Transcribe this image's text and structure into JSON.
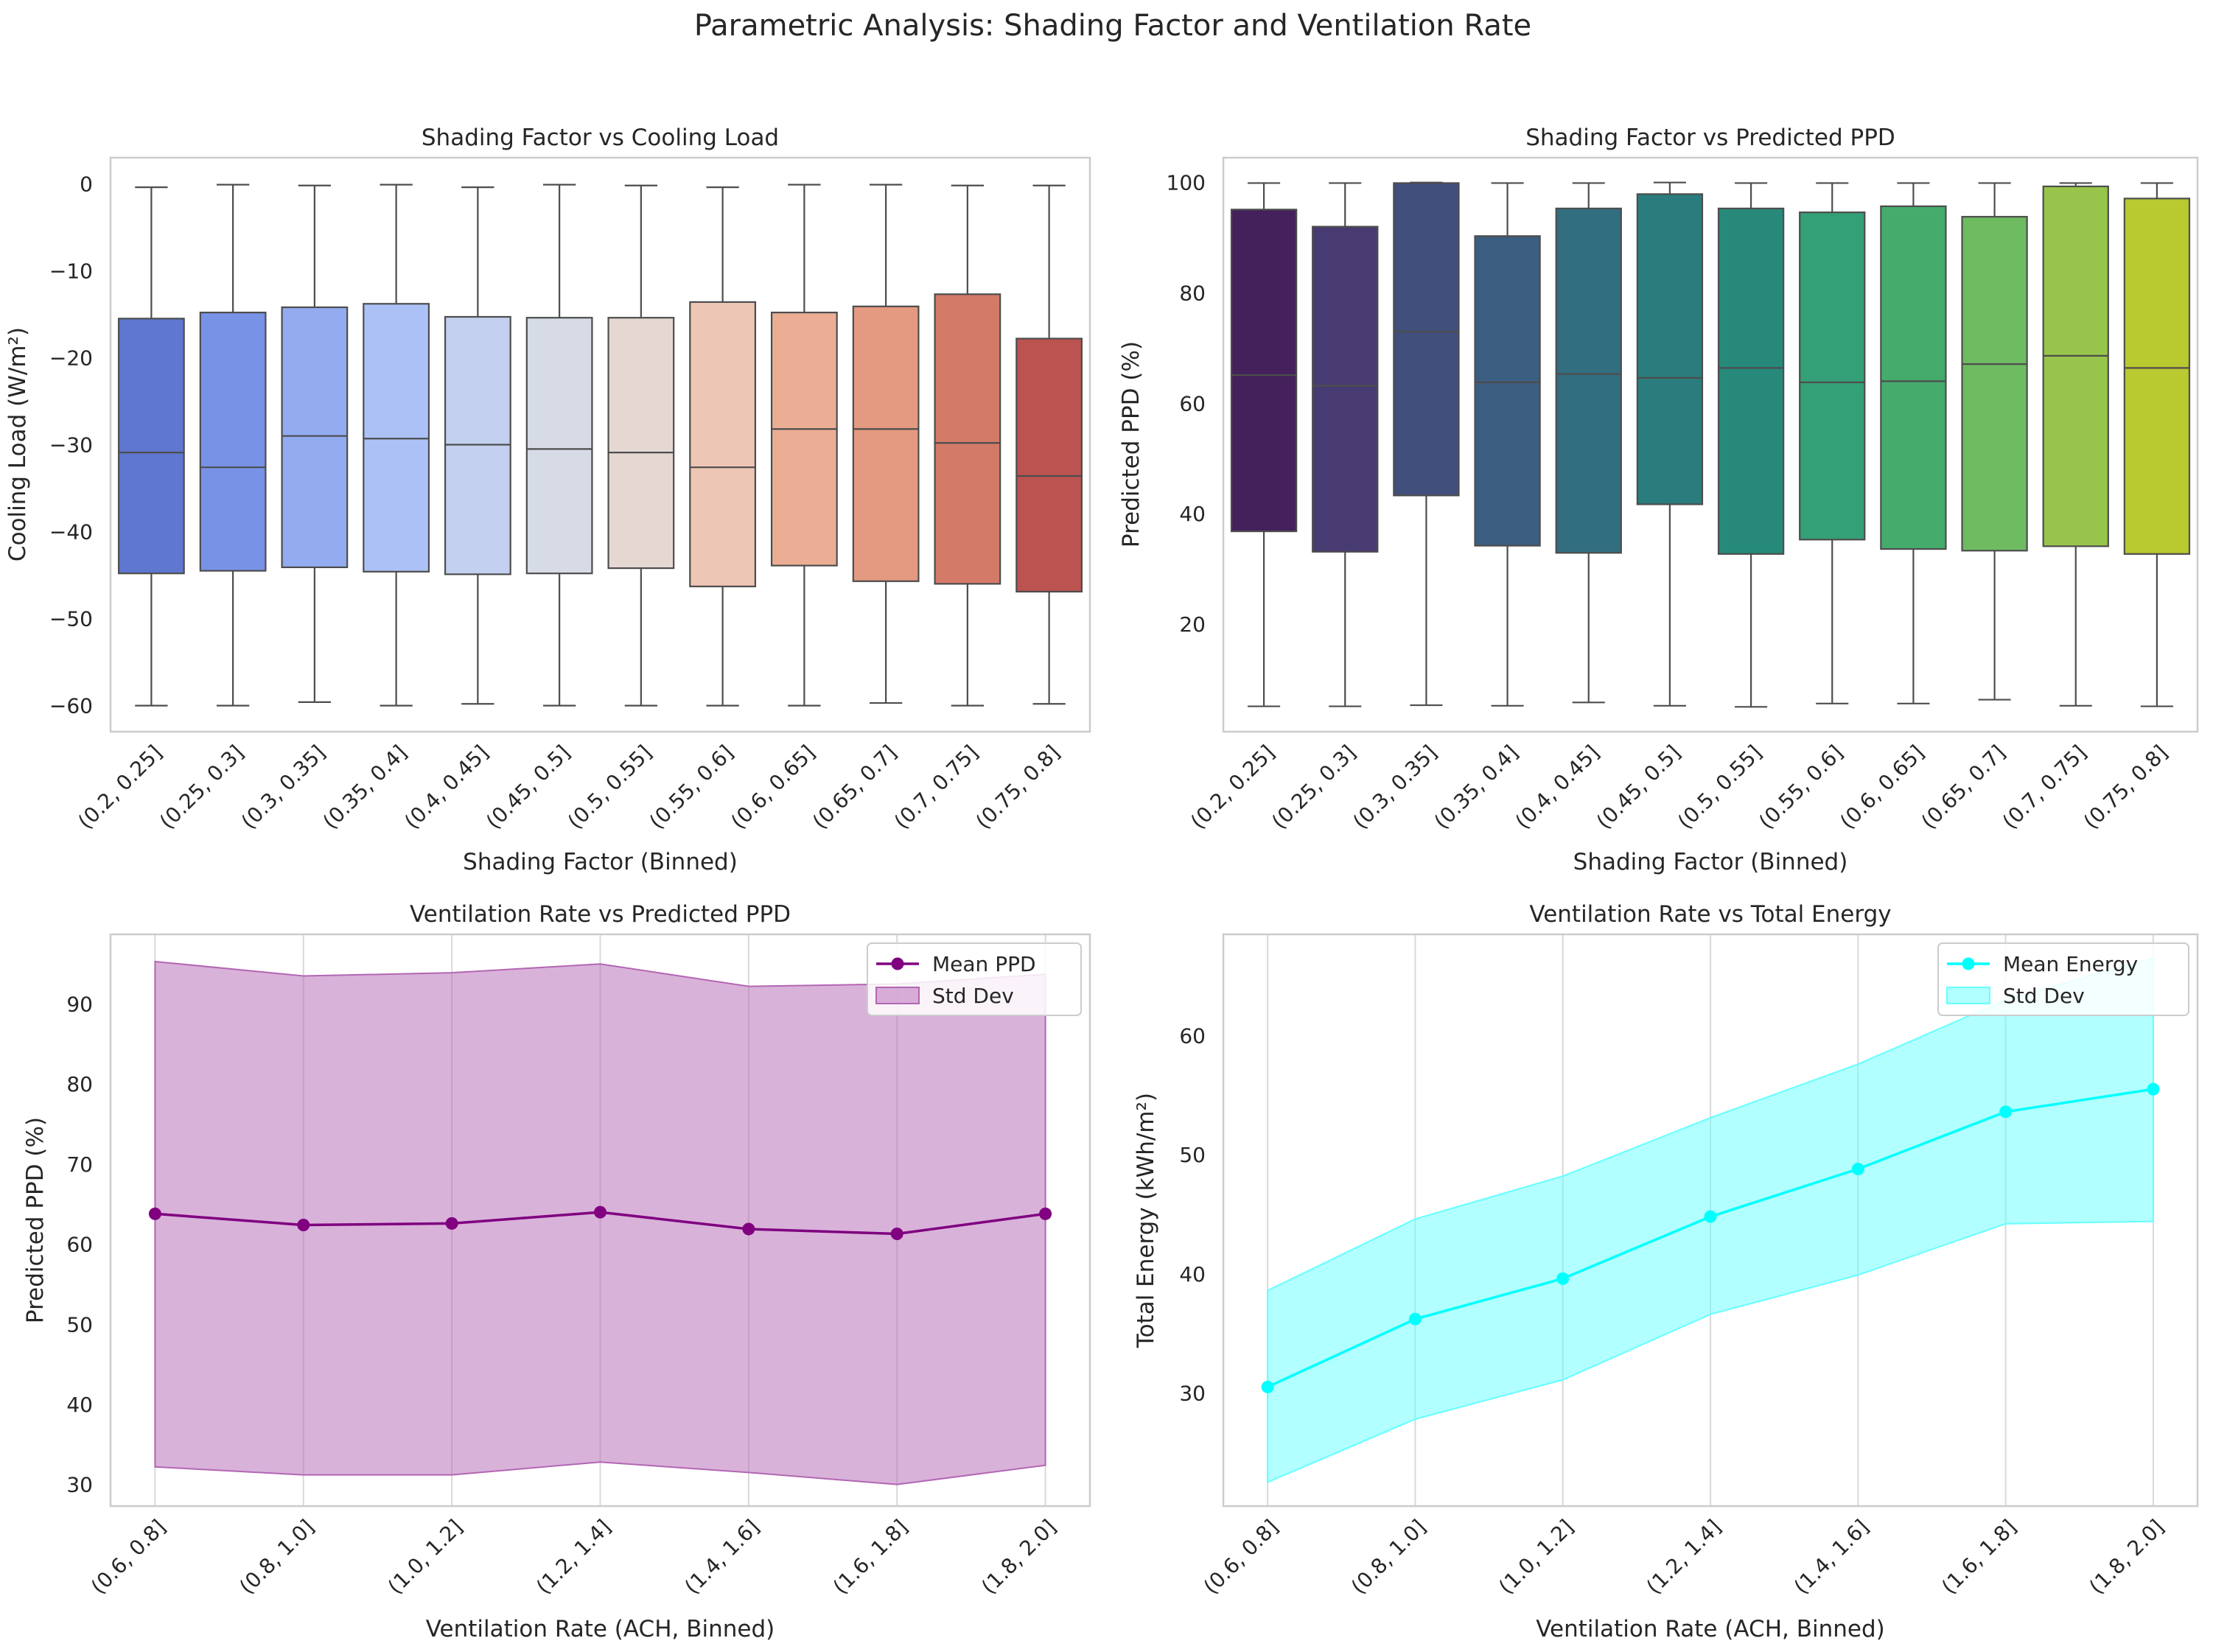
{
  "figure": {
    "suptitle": "Parametric Analysis: Shading Factor and Ventilation Rate"
  },
  "chart_data": [
    {
      "type": "box",
      "title": "Shading Factor vs Cooling Load",
      "xlabel": "Shading Factor (Binned)",
      "ylabel": "Cooling Load (W/m²)",
      "ylim": [
        -63,
        3
      ],
      "yticks": [
        0,
        -10,
        -20,
        -30,
        -40,
        -50,
        -60
      ],
      "categories": [
        "(0.2, 0.25]",
        "(0.25, 0.3]",
        "(0.3, 0.35]",
        "(0.35, 0.4]",
        "(0.4, 0.45]",
        "(0.45, 0.5]",
        "(0.5, 0.55]",
        "(0.55, 0.6]",
        "(0.6, 0.65]",
        "(0.65, 0.7]",
        "(0.7, 0.75]",
        "(0.75, 0.8]"
      ],
      "boxes": [
        {
          "min": -60.0,
          "q1": -44.8,
          "median": -30.9,
          "q3": -15.5,
          "max": -0.4
        },
        {
          "min": -60.0,
          "q1": -44.5,
          "median": -32.6,
          "q3": -14.8,
          "max": -0.1
        },
        {
          "min": -59.6,
          "q1": -44.1,
          "median": -29.0,
          "q3": -14.2,
          "max": -0.2
        },
        {
          "min": -60.0,
          "q1": -44.6,
          "median": -29.3,
          "q3": -13.8,
          "max": -0.1
        },
        {
          "min": -59.8,
          "q1": -44.9,
          "median": -30.0,
          "q3": -15.3,
          "max": -0.4
        },
        {
          "min": -60.0,
          "q1": -44.8,
          "median": -30.5,
          "q3": -15.4,
          "max": -0.1
        },
        {
          "min": -60.0,
          "q1": -44.2,
          "median": -30.9,
          "q3": -15.4,
          "max": -0.2
        },
        {
          "min": -60.0,
          "q1": -46.3,
          "median": -32.6,
          "q3": -13.6,
          "max": -0.4
        },
        {
          "min": -60.0,
          "q1": -43.9,
          "median": -28.2,
          "q3": -14.8,
          "max": -0.1
        },
        {
          "min": -59.7,
          "q1": -45.7,
          "median": -28.2,
          "q3": -14.1,
          "max": -0.1
        },
        {
          "min": -60.0,
          "q1": -46.0,
          "median": -29.8,
          "q3": -12.7,
          "max": -0.2
        },
        {
          "min": -59.8,
          "q1": -46.9,
          "median": -33.6,
          "q3": -17.8,
          "max": -0.2
        }
      ],
      "colors": [
        "#5f77d0",
        "#7892e6",
        "#93acf0",
        "#acc2f7",
        "#c3d0ef",
        "#d6dbe5",
        "#e5d8d3",
        "#eec6b5",
        "#ebae94",
        "#e39a80",
        "#d47a69",
        "#bb5350"
      ]
    },
    {
      "type": "box",
      "title": "Shading Factor vs Predicted PPD",
      "xlabel": "Shading Factor (Binned)",
      "ylabel": "Predicted PPD (%)",
      "ylim": [
        0.5,
        104.5
      ],
      "yticks": [
        20,
        40,
        60,
        80,
        100
      ],
      "categories": [
        "(0.2, 0.25]",
        "(0.25, 0.3]",
        "(0.3, 0.35]",
        "(0.35, 0.4]",
        "(0.4, 0.45]",
        "(0.45, 0.5]",
        "(0.5, 0.55]",
        "(0.55, 0.6]",
        "(0.6, 0.65]",
        "(0.65, 0.7]",
        "(0.7, 0.75]",
        "(0.75, 0.8]"
      ],
      "boxes": [
        {
          "min": 5.1,
          "q1": 36.8,
          "median": 65.1,
          "q3": 95.1,
          "max": 99.9
        },
        {
          "min": 5.1,
          "q1": 33.1,
          "median": 63.2,
          "q3": 92.0,
          "max": 99.9
        },
        {
          "min": 5.3,
          "q1": 43.3,
          "median": 73.0,
          "q3": 99.9,
          "max": 100.0
        },
        {
          "min": 5.2,
          "q1": 34.2,
          "median": 63.8,
          "q3": 90.3,
          "max": 99.9
        },
        {
          "min": 5.8,
          "q1": 32.9,
          "median": 65.3,
          "q3": 95.3,
          "max": 99.9
        },
        {
          "min": 5.2,
          "q1": 41.7,
          "median": 64.6,
          "q3": 97.9,
          "max": 100.0
        },
        {
          "min": 5.0,
          "q1": 32.7,
          "median": 66.4,
          "q3": 95.3,
          "max": 99.9
        },
        {
          "min": 5.6,
          "q1": 35.3,
          "median": 63.8,
          "q3": 94.6,
          "max": 99.9
        },
        {
          "min": 5.6,
          "q1": 33.6,
          "median": 64.0,
          "q3": 95.7,
          "max": 99.9
        },
        {
          "min": 6.3,
          "q1": 33.3,
          "median": 67.1,
          "q3": 93.8,
          "max": 99.9
        },
        {
          "min": 5.2,
          "q1": 34.1,
          "median": 68.6,
          "q3": 99.3,
          "max": 99.9
        },
        {
          "min": 5.1,
          "q1": 32.7,
          "median": 66.4,
          "q3": 97.1,
          "max": 99.9
        }
      ],
      "colors": [
        "#44215a",
        "#483b72",
        "#414f7d",
        "#3b5e80",
        "#316e80",
        "#2b7c7d",
        "#26897a",
        "#33a077",
        "#45ab6d",
        "#6ebb62",
        "#97c54b",
        "#b9c930"
      ]
    },
    {
      "type": "line",
      "title": "Ventilation Rate vs Predicted PPD",
      "xlabel": "Ventilation Rate (ACH, Binned)",
      "ylabel": "Predicted PPD (%)",
      "ylim": [
        27.3,
        98.7
      ],
      "yticks": [
        30,
        40,
        50,
        60,
        70,
        80,
        90
      ],
      "categories": [
        "(0.6, 0.8]",
        "(0.8, 1.0]",
        "(1.0, 1.2]",
        "(1.2, 1.4]",
        "(1.4, 1.6]",
        "(1.6, 1.8]",
        "(1.8, 2.0]"
      ],
      "series": [
        {
          "name": "Mean PPD",
          "values": [
            63.8,
            62.4,
            62.6,
            64.0,
            61.9,
            61.3,
            63.8
          ],
          "color": "#800080"
        }
      ],
      "band": {
        "name": "Std Dev",
        "upper": [
          95.3,
          93.5,
          93.9,
          95.0,
          92.2,
          92.5,
          93.7
        ],
        "lower": [
          32.2,
          31.2,
          31.2,
          32.8,
          31.5,
          30.0,
          32.4
        ],
        "color": "#b366b3"
      },
      "legend": "top-right"
    },
    {
      "type": "line",
      "title": "Ventilation Rate vs Total Energy",
      "xlabel": "Ventilation Rate (ACH, Binned)",
      "ylabel": "Total Energy (kWh/m²)",
      "ylim": [
        20.5,
        68.5
      ],
      "yticks": [
        30,
        40,
        50,
        60
      ],
      "categories": [
        "(0.6, 0.8]",
        "(0.8, 1.0]",
        "(1.0, 1.2]",
        "(1.2, 1.4]",
        "(1.4, 1.6]",
        "(1.6, 1.8]",
        "(1.8, 2.0]"
      ],
      "series": [
        {
          "name": "Mean Energy",
          "values": [
            30.5,
            36.2,
            39.6,
            44.8,
            48.8,
            53.6,
            55.5
          ],
          "color": "#00ffff"
        }
      ],
      "band": {
        "name": "Std Dev",
        "upper": [
          38.6,
          44.6,
          48.2,
          53.1,
          57.6,
          63.0,
          66.5
        ],
        "lower": [
          22.5,
          27.8,
          31.1,
          36.6,
          39.9,
          44.2,
          44.4
        ],
        "color": "#66ffff"
      },
      "legend": "top-right"
    }
  ]
}
